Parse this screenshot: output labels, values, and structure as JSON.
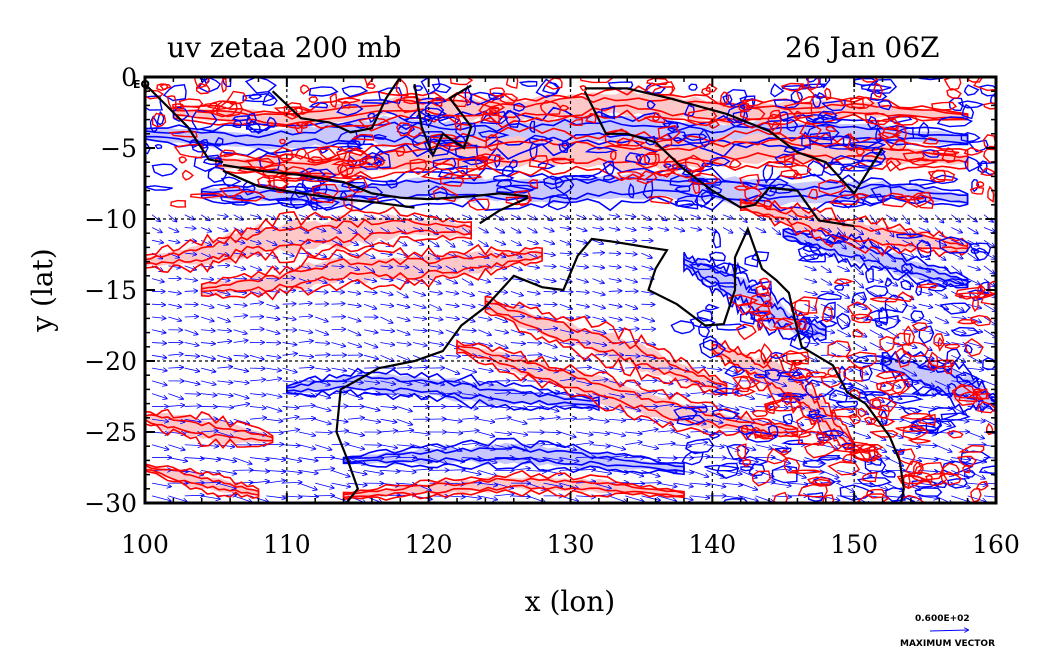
{
  "chart_data": {
    "type": "contour",
    "title_left": "uv zetaa 200 mb",
    "title_right": "26 Jan 06Z",
    "xlabel": "x (lon)",
    "ylabel": "y (lat)",
    "xlim": [
      100,
      160
    ],
    "ylim": [
      -30,
      0
    ],
    "x_ticks": [
      100,
      110,
      120,
      130,
      140,
      150,
      160
    ],
    "x_tick_labels": [
      "100",
      "110",
      "120",
      "130",
      "140",
      "150",
      "160"
    ],
    "y_ticks": [
      0,
      -5,
      -10,
      -15,
      -20,
      -25,
      -30
    ],
    "y_tick_labels": [
      "0",
      "−5",
      "−10",
      "−15",
      "−20",
      "−25",
      "−30"
    ],
    "grid_x": [
      110,
      120,
      130,
      140,
      150
    ],
    "grid_y": [
      -10,
      -20
    ],
    "equator_label": "EQ",
    "vector_legend": {
      "value_label": "0.600E+02",
      "caption": "MAXIMUM VECTOR"
    },
    "colors": {
      "positive": "#ff0000",
      "negative": "#0000ff",
      "positive_fill": "#ffc8c8",
      "negative_fill": "#c8c8ff",
      "coast": "#000000",
      "vectors": "#0000ff"
    },
    "positive_bands": [
      {
        "lon": [
          100,
          104,
          108,
          113,
          118,
          123
        ],
        "lat": [
          -13,
          -12.5,
          -11.5,
          -11,
          -10.5,
          -10.8
        ],
        "w": 1.0
      },
      {
        "lon": [
          104,
          109,
          114,
          119,
          124,
          128
        ],
        "lat": [
          -15,
          -14.5,
          -13.5,
          -13.5,
          -13,
          -12.5
        ],
        "w": 0.9
      },
      {
        "lon": [
          124,
          128,
          133,
          137,
          141
        ],
        "lat": [
          -16,
          -17.5,
          -19,
          -20.5,
          -22
        ],
        "w": 0.9
      },
      {
        "lon": [
          122,
          127,
          132,
          137,
          142,
          146
        ],
        "lat": [
          -19,
          -20.5,
          -22,
          -23.5,
          -24.5,
          -25
        ],
        "w": 0.8
      },
      {
        "lon": [
          140,
          143,
          146,
          148,
          150
        ],
        "lat": [
          -19,
          -20.5,
          -22,
          -24,
          -26
        ],
        "w": 1.0
      },
      {
        "lon": [
          100,
          104,
          109
        ],
        "lat": [
          -24,
          -24.8,
          -25.5
        ],
        "w": 0.7
      },
      {
        "lon": [
          100,
          104,
          108
        ],
        "lat": [
          -27.5,
          -28.5,
          -29.3
        ],
        "w": 0.5
      },
      {
        "lon": [
          114,
          120,
          126,
          132,
          138
        ],
        "lat": [
          -29.5,
          -29.0,
          -28.6,
          -28.8,
          -29.4
        ],
        "w": 0.5
      },
      {
        "lon": [
          105,
          112,
          120,
          128,
          136,
          144,
          152,
          158
        ],
        "lat": [
          -6,
          -6.5,
          -5.5,
          -5.2,
          -5.6,
          -5.0,
          -5.4,
          -5.8
        ],
        "w": 1.0
      },
      {
        "lon": [
          102,
          110,
          118,
          126,
          134,
          142,
          150,
          158
        ],
        "lat": [
          -2.5,
          -3.0,
          -2.0,
          -2.4,
          -1.8,
          -2.6,
          -2.2,
          -2.8
        ],
        "w": 0.8
      },
      {
        "lon": [
          142,
          146,
          150,
          154,
          158
        ],
        "lat": [
          -9,
          -10,
          -11,
          -11.5,
          -12
        ],
        "w": 0.8
      }
    ],
    "negative_bands": [
      {
        "lon": [
          110,
          115,
          120,
          126,
          132
        ],
        "lat": [
          -22,
          -21.5,
          -21.8,
          -22.5,
          -23
        ],
        "w": 0.7
      },
      {
        "lon": [
          114,
          120,
          126,
          132,
          138
        ],
        "lat": [
          -27,
          -26.7,
          -26.5,
          -27,
          -27.6
        ],
        "w": 0.6
      },
      {
        "lon": [
          100,
          108,
          116,
          124,
          132,
          140,
          148,
          158
        ],
        "lat": [
          -4,
          -4.5,
          -3.8,
          -4.2,
          -3.6,
          -4.2,
          -3.8,
          -4.4
        ],
        "w": 1.0
      },
      {
        "lon": [
          104,
          112,
          120,
          128,
          136,
          144,
          152,
          158
        ],
        "lat": [
          -8.2,
          -8.4,
          -7.8,
          -8.0,
          -7.6,
          -8.2,
          -8.0,
          -8.6
        ],
        "w": 0.9
      },
      {
        "lon": [
          138,
          140,
          142,
          144,
          146,
          148
        ],
        "lat": [
          -13,
          -14,
          -15,
          -16.5,
          -17.5,
          -18
        ],
        "w": 1.0
      },
      {
        "lon": [
          152,
          155,
          158,
          160
        ],
        "lat": [
          -20,
          -21,
          -22,
          -23
        ],
        "w": 1.0
      },
      {
        "lon": [
          145,
          148,
          151,
          154,
          158
        ],
        "lat": [
          -11,
          -11.8,
          -12.5,
          -13.5,
          -14.5
        ],
        "w": 0.7
      }
    ]
  }
}
